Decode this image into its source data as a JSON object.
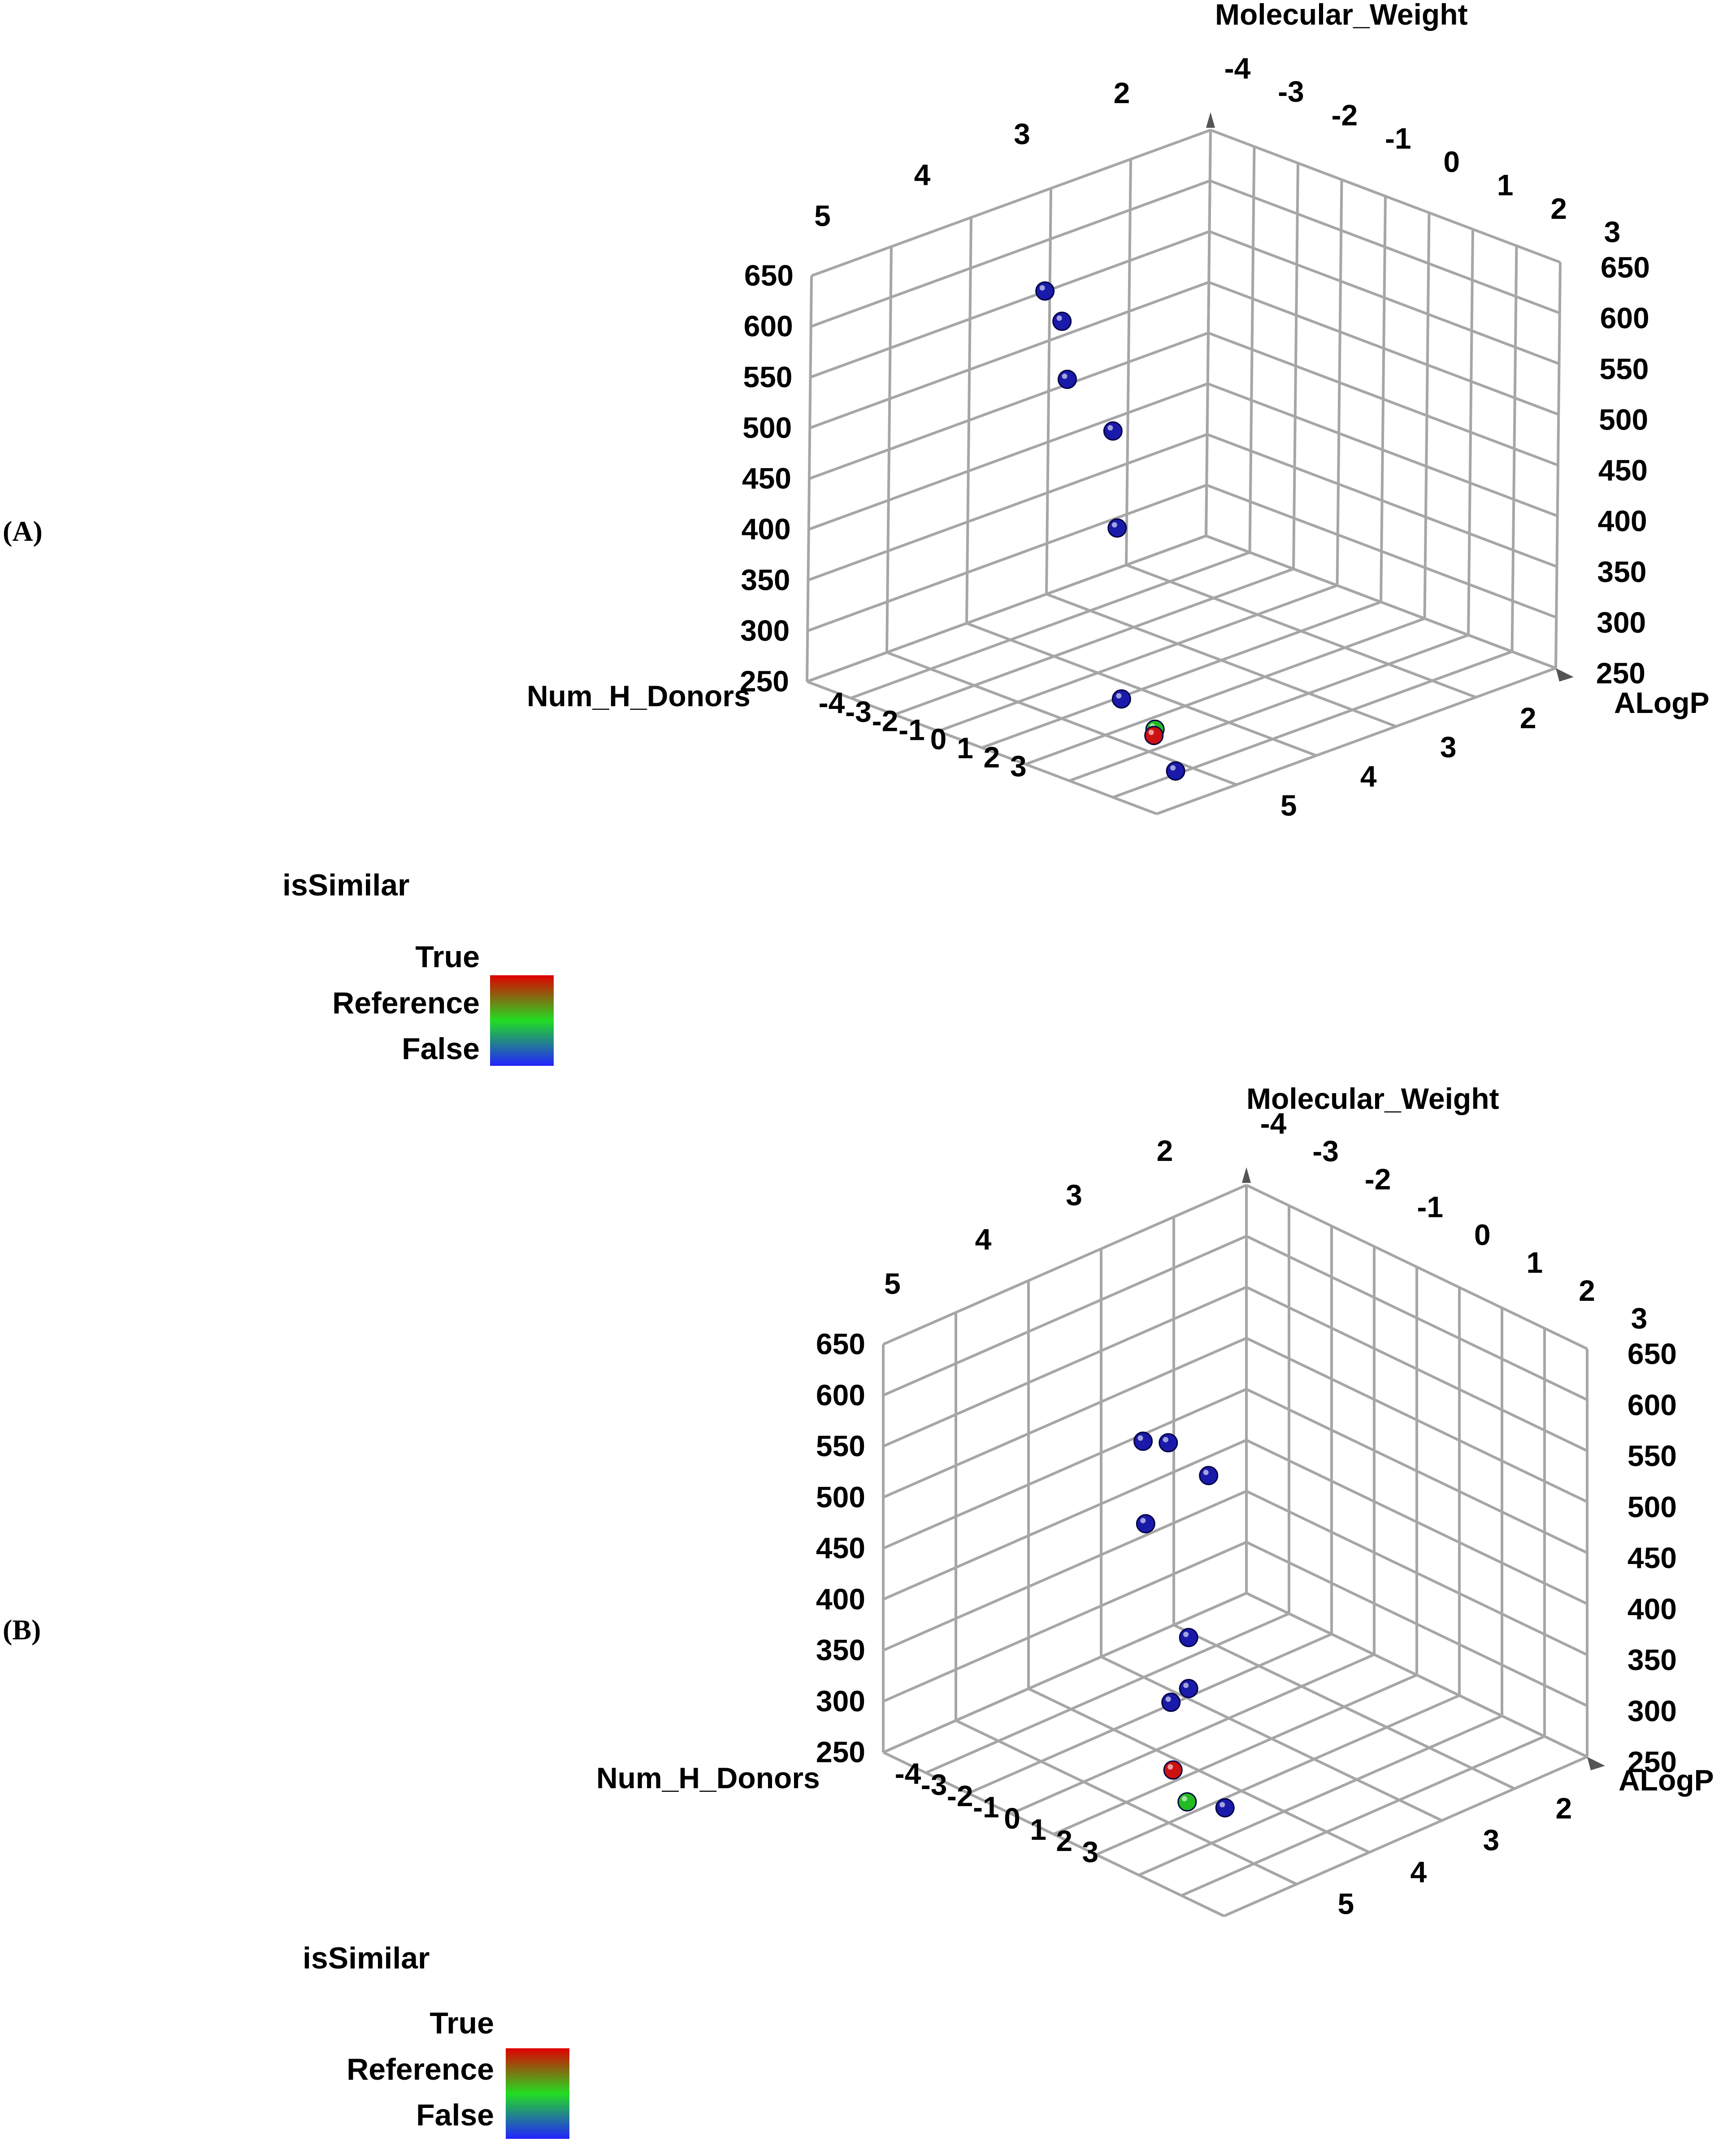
{
  "figure": {
    "labels": [
      "(A)",
      "(B)"
    ]
  },
  "legend": {
    "title": "isSimilar",
    "entries": [
      "True",
      "Reference",
      "False"
    ],
    "colors": {
      "True": "#cc1111",
      "Reference": "#22bb22",
      "False": "#1a1aaa"
    }
  },
  "chart_data": [
    {
      "panel": "A",
      "type": "scatter",
      "projection": "3d",
      "axes": {
        "vertical": {
          "label": "Molecular_Weight",
          "ticks": [
            250,
            300,
            350,
            400,
            450,
            500,
            550,
            600,
            650
          ],
          "range": [
            250,
            650
          ]
        },
        "right": {
          "label": "ALogP",
          "back_ticks": [
            -4,
            -3,
            -2,
            -1,
            0,
            1,
            2,
            3
          ],
          "front_ticks": [
            2,
            3,
            4,
            5
          ],
          "range": [
            -4,
            5
          ]
        },
        "left": {
          "label": "Num_H_Donors",
          "back_ticks": [
            5,
            4,
            3,
            2
          ],
          "front_ticks": [
            -4,
            -3,
            -2,
            -1,
            0,
            1,
            2,
            3
          ],
          "range": [
            -4,
            5
          ]
        }
      },
      "grid": true,
      "points": [
        {
          "ALogP": 1.0,
          "Num_H_Donors": 3.6,
          "Molecular_Weight": 598,
          "class": "False"
        },
        {
          "ALogP": -2.2,
          "Num_H_Donors": 1.3,
          "Molecular_Weight": 602,
          "class": "False"
        },
        {
          "ALogP": -3.0,
          "Num_H_Donors": 0.2,
          "Molecular_Weight": 543,
          "class": "False"
        },
        {
          "ALogP": -3.7,
          "Num_H_Donors": -1.6,
          "Molecular_Weight": 396,
          "class": "False"
        },
        {
          "ALogP": 3.0,
          "Num_H_Donors": 4.2,
          "Molecular_Weight": 490,
          "class": "False"
        },
        {
          "ALogP": 1.8,
          "Num_H_Donors": 3.0,
          "Molecular_Weight": 285,
          "class": "False"
        },
        {
          "ALogP": 4.0,
          "Num_H_Donors": 3.7,
          "Molecular_Weight": 257,
          "class": "False"
        },
        {
          "ALogP": 3.8,
          "Num_H_Donors": 4.0,
          "Molecular_Weight": 300,
          "class": "Reference"
        },
        {
          "ALogP": 4.0,
          "Num_H_Donors": 4.2,
          "Molecular_Weight": 300,
          "class": "True"
        }
      ]
    },
    {
      "panel": "B",
      "type": "scatter",
      "projection": "3d",
      "axes": {
        "vertical": {
          "label": "Molecular_Weight",
          "ticks": [
            250,
            300,
            350,
            400,
            450,
            500,
            550,
            600,
            650
          ],
          "range": [
            250,
            650
          ]
        },
        "right": {
          "label": "ALogP",
          "back_ticks": [
            -4,
            -3,
            -2,
            -1,
            0,
            1,
            2,
            3
          ],
          "front_ticks": [
            2,
            3,
            4,
            5
          ],
          "range": [
            -4,
            5
          ]
        },
        "left": {
          "label": "Num_H_Donors",
          "back_ticks": [
            5,
            4,
            3,
            2
          ],
          "front_ticks": [
            -4,
            -3,
            -2,
            -1,
            0,
            1,
            2,
            3
          ],
          "range": [
            -4,
            5
          ]
        }
      },
      "grid": true,
      "points": [
        {
          "ALogP": 0.8,
          "Num_H_Donors": 3.0,
          "Molecular_Weight": 525,
          "class": "False"
        },
        {
          "ALogP": -1.4,
          "Num_H_Donors": 1.0,
          "Molecular_Weight": 532,
          "class": "False"
        },
        {
          "ALogP": -1.8,
          "Num_H_Donors": 0.0,
          "Molecular_Weight": 506,
          "class": "False"
        },
        {
          "ALogP": -3.4,
          "Num_H_Donors": -2.5,
          "Molecular_Weight": 402,
          "class": "False"
        },
        {
          "ALogP": 3.0,
          "Num_H_Donors": 4.0,
          "Molecular_Weight": 470,
          "class": "False"
        },
        {
          "ALogP": 3.0,
          "Num_H_Donors": 4.0,
          "Molecular_Weight": 420,
          "class": "False"
        },
        {
          "ALogP": 2.0,
          "Num_H_Donors": 3.5,
          "Molecular_Weight": 380,
          "class": "False"
        },
        {
          "ALogP": 4.6,
          "Num_H_Donors": 4.6,
          "Molecular_Weight": 342,
          "class": "False"
        },
        {
          "ALogP": 2.8,
          "Num_H_Donors": 4.2,
          "Molecular_Weight": 340,
          "class": "True"
        },
        {
          "ALogP": 3.6,
          "Num_H_Donors": 4.6,
          "Molecular_Weight": 330,
          "class": "Reference"
        }
      ]
    }
  ]
}
